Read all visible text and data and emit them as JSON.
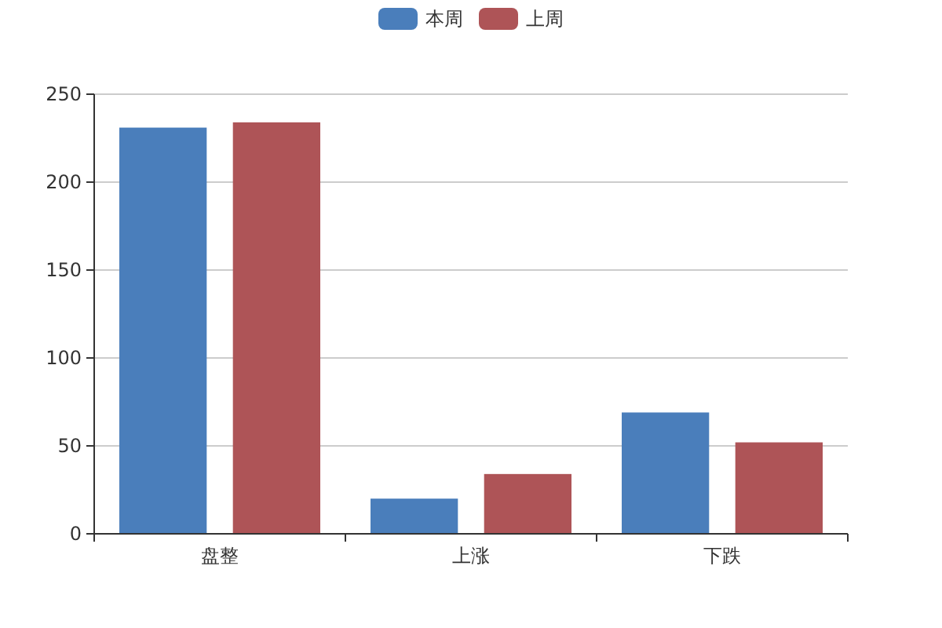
{
  "chart_data": {
    "type": "bar",
    "categories": [
      "盘整",
      "上涨",
      "下跌"
    ],
    "series": [
      {
        "name": "本周",
        "color": "#4a7ebb",
        "values": [
          231,
          20,
          69
        ]
      },
      {
        "name": "上周",
        "color": "#ae5457",
        "values": [
          234,
          34,
          52
        ]
      }
    ],
    "ylim": [
      0,
      250
    ],
    "yticks": [
      0,
      50,
      100,
      150,
      200,
      250
    ],
    "grid": "y",
    "legend": "top"
  }
}
